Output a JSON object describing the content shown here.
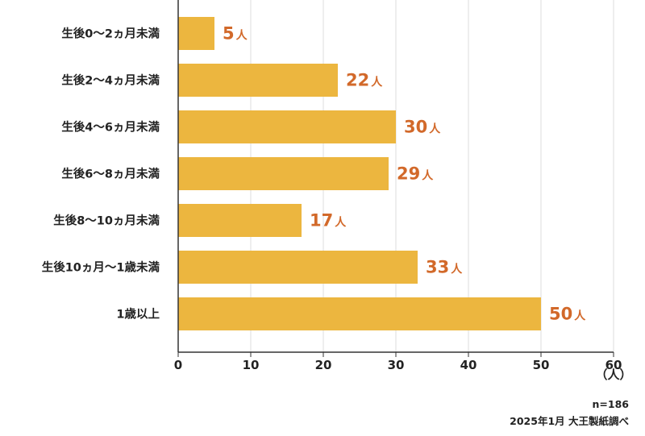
{
  "chart_data": {
    "type": "bar",
    "orientation": "horizontal",
    "categories": [
      "生後0〜2ヵ月未満",
      "生後2〜4ヵ月未満",
      "生後4〜6ヵ月未満",
      "生後6〜8ヵ月未満",
      "生後8〜10ヵ月未満",
      "生後10ヵ月〜1歳未満",
      "1歳以上"
    ],
    "values": [
      5,
      22,
      30,
      29,
      17,
      33,
      50
    ],
    "value_suffix": "人",
    "xlim": [
      0,
      60
    ],
    "xticks": [
      0,
      10,
      20,
      30,
      40,
      50,
      60
    ],
    "x_unit_label": "（人）",
    "grid": "vertical",
    "bar_color": "#ECB63F",
    "label_color": "#D2692A",
    "grid_color": "#DDDDDD",
    "axis_color": "#333333"
  },
  "notes": {
    "sample": "n=186",
    "source": "2025年1月 大王製紙調べ"
  }
}
